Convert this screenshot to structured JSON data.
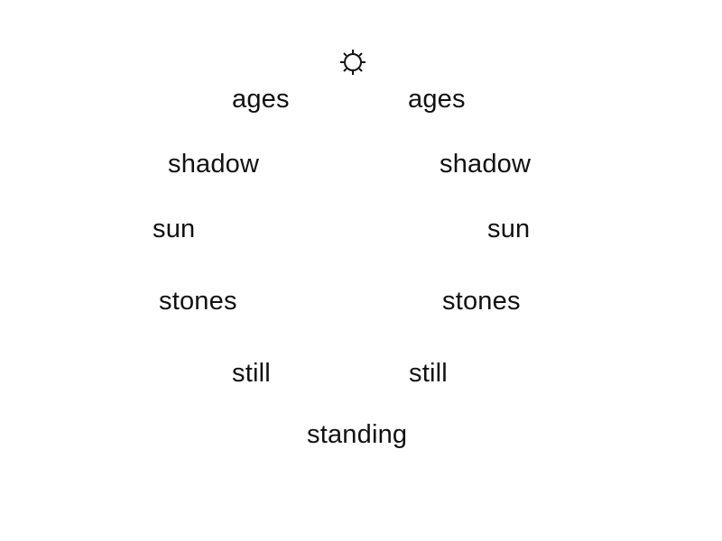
{
  "poem": {
    "symbol": {
      "icon": "sun-icon",
      "glyph": "☼"
    },
    "left": {
      "line1": "ages",
      "line2": "shadow",
      "line3": "sun",
      "line4": "stones",
      "line5": "still"
    },
    "right": {
      "line1": "ages",
      "line2": "shadow",
      "line3": "sun",
      "line4": "stones",
      "line5": "still"
    },
    "center": {
      "bottom": "standing"
    }
  }
}
